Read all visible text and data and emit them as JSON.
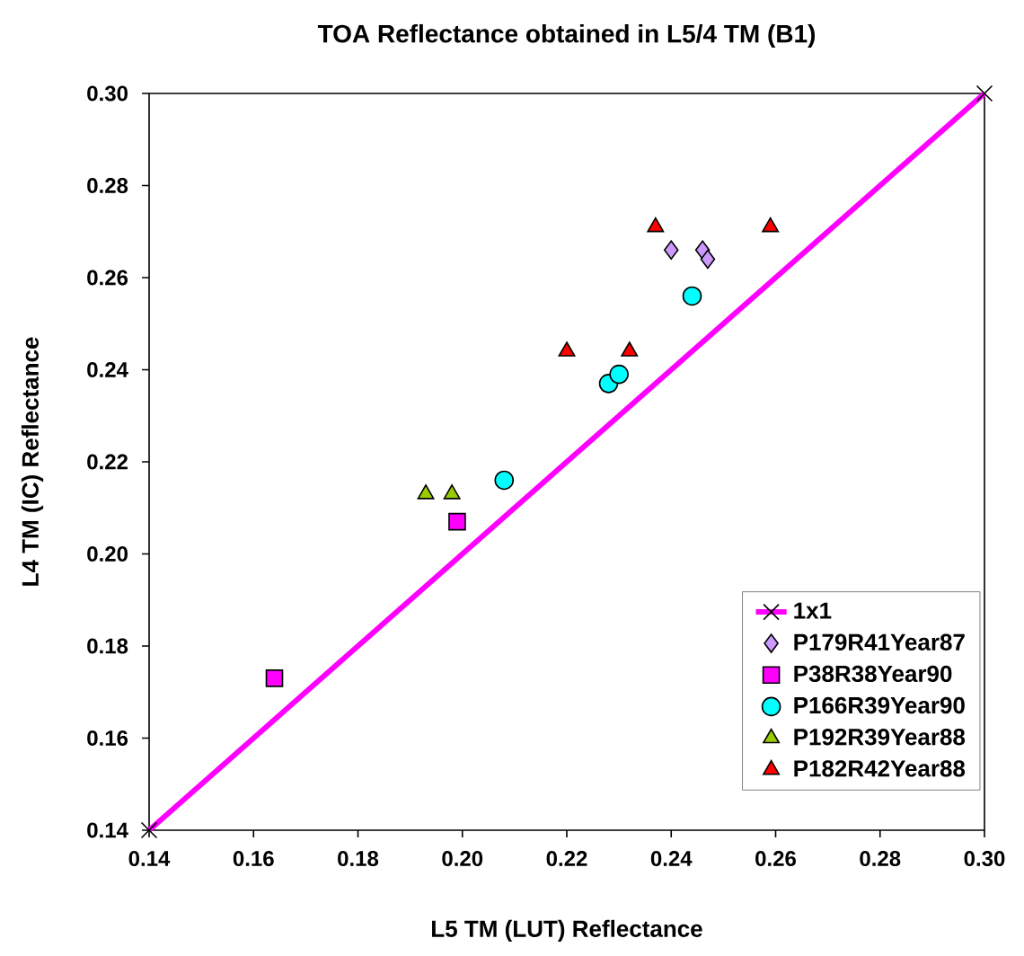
{
  "chart_data": {
    "type": "scatter",
    "title": "TOA Reflectance obtained in L5/4 TM (B1)",
    "xlabel": "L5 TM (LUT) Reflectance",
    "ylabel": "L4 TM (IC) Reflectance",
    "xlim": [
      0.14,
      0.3
    ],
    "ylim": [
      0.14,
      0.3
    ],
    "xticks": [
      {
        "value": 0.14,
        "label": "0.14"
      },
      {
        "value": 0.16,
        "label": "0.16"
      },
      {
        "value": 0.18,
        "label": "0.18"
      },
      {
        "value": 0.2,
        "label": "0.20"
      },
      {
        "value": 0.22,
        "label": "0.22"
      },
      {
        "value": 0.24,
        "label": "0.24"
      },
      {
        "value": 0.26,
        "label": "0.26"
      },
      {
        "value": 0.28,
        "label": "0.28"
      },
      {
        "value": 0.3,
        "label": "0.30"
      }
    ],
    "yticks": [
      {
        "value": 0.14,
        "label": "0.14"
      },
      {
        "value": 0.16,
        "label": "0.16"
      },
      {
        "value": 0.18,
        "label": "0.18"
      },
      {
        "value": 0.2,
        "label": "0.20"
      },
      {
        "value": 0.22,
        "label": "0.22"
      },
      {
        "value": 0.24,
        "label": "0.24"
      },
      {
        "value": 0.26,
        "label": "0.26"
      },
      {
        "value": 0.28,
        "label": "0.28"
      },
      {
        "value": 0.3,
        "label": "0.30"
      }
    ],
    "grid": false,
    "legend": "bottom right",
    "series": [
      {
        "name": "1x1",
        "type": "line",
        "marker": "cross",
        "line_style": "solid",
        "color": "#ff00ff",
        "x": [
          0.14,
          0.3
        ],
        "values": [
          0.14,
          0.3
        ]
      },
      {
        "name": "P179R41Year87",
        "marker": "diamond",
        "color": "#cc99ff",
        "x": [
          0.24,
          0.246,
          0.247
        ],
        "values": [
          0.266,
          0.266,
          0.264
        ]
      },
      {
        "name": "P38R38Year90",
        "marker": "square",
        "color": "#ff00ff",
        "x": [
          0.164,
          0.199
        ],
        "values": [
          0.173,
          0.207
        ]
      },
      {
        "name": "P166R39Year90",
        "marker": "circle",
        "color": "#00ffff",
        "x": [
          0.208,
          0.228,
          0.23,
          0.244
        ],
        "values": [
          0.216,
          0.237,
          0.239,
          0.256
        ]
      },
      {
        "name": "P192R39Year88",
        "marker": "triangle",
        "color": "#99cc00",
        "x": [
          0.193,
          0.198
        ],
        "values": [
          0.213,
          0.213
        ]
      },
      {
        "name": "P182R42Year88",
        "marker": "triangle",
        "color": "#ff0000",
        "x": [
          0.22,
          0.232,
          0.237,
          0.259
        ],
        "values": [
          0.244,
          0.244,
          0.271,
          0.271
        ]
      }
    ]
  }
}
